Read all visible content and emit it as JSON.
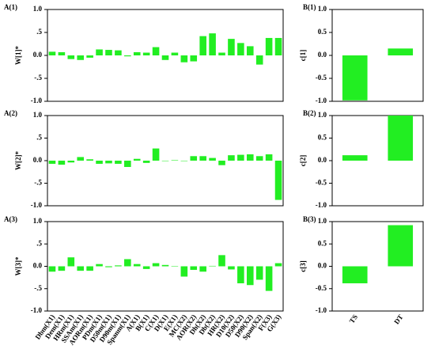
{
  "chart_data": [
    {
      "type": "bar",
      "title": "A(1)",
      "ylabel": "W[1]*",
      "color": "#22ee22",
      "values": [
        0.08,
        0.07,
        -0.08,
        -0.1,
        -0.05,
        0.13,
        0.12,
        0.11,
        -0.02,
        0.07,
        0.06,
        0.18,
        -0.1,
        0.06,
        -0.15,
        -0.13,
        0.42,
        0.48,
        0.06,
        0.36,
        0.27,
        0.2,
        -0.2,
        0.38,
        0.38
      ],
      "ylim": [
        -1.0,
        1.0
      ],
      "yticks": [
        {
          "value": -1.0,
          "label": "-1.0"
        },
        {
          "value": -0.5,
          "label": "-.5"
        },
        {
          "value": 0.0,
          "label": "0.0"
        },
        {
          "value": 0.5,
          "label": ".5"
        },
        {
          "value": 1.0,
          "label": "1.0"
        }
      ]
    },
    {
      "type": "bar",
      "title": "A(2)",
      "ylabel": "W[2]*",
      "color": "#22ee22",
      "values": [
        -0.07,
        -0.09,
        -0.04,
        0.08,
        0.03,
        -0.07,
        -0.06,
        -0.07,
        -0.14,
        0.04,
        -0.05,
        0.27,
        0.0,
        0.01,
        0.0,
        0.1,
        0.1,
        0.06,
        -0.1,
        0.12,
        0.13,
        0.14,
        0.1,
        0.14,
        -0.87
      ],
      "ylim": [
        -1.0,
        1.0
      ],
      "yticks": [
        {
          "value": -1.0,
          "label": "-1.0"
        },
        {
          "value": -0.5,
          "label": "-.5"
        },
        {
          "value": 0.0,
          "label": "0.0"
        },
        {
          "value": 0.5,
          "label": ".5"
        },
        {
          "value": 1.0,
          "label": "1.0"
        }
      ]
    },
    {
      "type": "bar",
      "title": "A(3)",
      "ylabel": "W[3]*",
      "color": "#22ee22",
      "categories": [
        "Dbm(X1)",
        "Dem(X1)",
        "HRm(X1)",
        "SSAm(X1)",
        "AORm(X1)",
        "PDm(X1)",
        "D50m(X1)",
        "D90m(X1)",
        "Spanm(X1)",
        "A(X1)",
        "B(X1)",
        "C(X1)",
        "D(X1)",
        "E(X1)",
        "MC(X2)",
        "AOR(X2)",
        "Dh(X2)",
        "Db(X2)",
        "HR(X2)",
        "D10(X2)",
        "D50(X2)",
        "D90(X2)",
        "Span(X2)",
        "F(X3)",
        "G(X3)"
      ],
      "values": [
        -0.12,
        -0.1,
        0.2,
        -0.1,
        -0.1,
        0.05,
        -0.02,
        0.02,
        0.16,
        0.05,
        -0.06,
        0.07,
        0.03,
        0.0,
        -0.23,
        -0.08,
        -0.12,
        0.01,
        0.25,
        -0.07,
        -0.38,
        -0.42,
        -0.3,
        -0.55,
        0.07
      ],
      "ylim": [
        -1.0,
        1.0
      ],
      "yticks": [
        {
          "value": -1.0,
          "label": "-1.0"
        },
        {
          "value": -0.5,
          "label": "-.5"
        },
        {
          "value": 0.0,
          "label": "0.0"
        },
        {
          "value": 0.5,
          "label": ".5"
        },
        {
          "value": 1.0,
          "label": "1.0"
        }
      ]
    },
    {
      "type": "bar",
      "title": "B(1)",
      "ylabel": "c[1]",
      "color": "#22ee22",
      "values": [
        -0.98,
        0.15
      ],
      "ylim": [
        -1.0,
        1.0
      ],
      "yticks": [
        {
          "value": -1.0,
          "label": "-1.0"
        },
        {
          "value": -0.5,
          "label": "-0.5"
        },
        {
          "value": 0.0,
          "label": "0.0"
        },
        {
          "value": 0.5,
          "label": "0.5"
        },
        {
          "value": 1.0,
          "label": "1.0"
        }
      ]
    },
    {
      "type": "bar",
      "title": "B(2)",
      "ylabel": "c[2]",
      "color": "#22ee22",
      "values": [
        0.12,
        1.0
      ],
      "ylim": [
        -1.0,
        1.0
      ],
      "yticks": [
        {
          "value": -1.0,
          "label": "-1.0"
        },
        {
          "value": -0.5,
          "label": "-0.5"
        },
        {
          "value": 0.0,
          "label": "0.0"
        },
        {
          "value": 0.5,
          "label": "0.5"
        },
        {
          "value": 1.0,
          "label": "1.0"
        }
      ]
    },
    {
      "type": "bar",
      "title": "B(3)",
      "ylabel": "c[3]",
      "color": "#22ee22",
      "categories": [
        "TS",
        "DT"
      ],
      "values": [
        -0.38,
        0.92
      ],
      "ylim": [
        -1.0,
        1.0
      ],
      "yticks": [
        {
          "value": -1.0,
          "label": "-1.0"
        },
        {
          "value": -0.5,
          "label": "-0.5"
        },
        {
          "value": 0.0,
          "label": "0.0"
        },
        {
          "value": 0.5,
          "label": "0.5"
        },
        {
          "value": 1.0,
          "label": "1.0"
        }
      ]
    }
  ]
}
